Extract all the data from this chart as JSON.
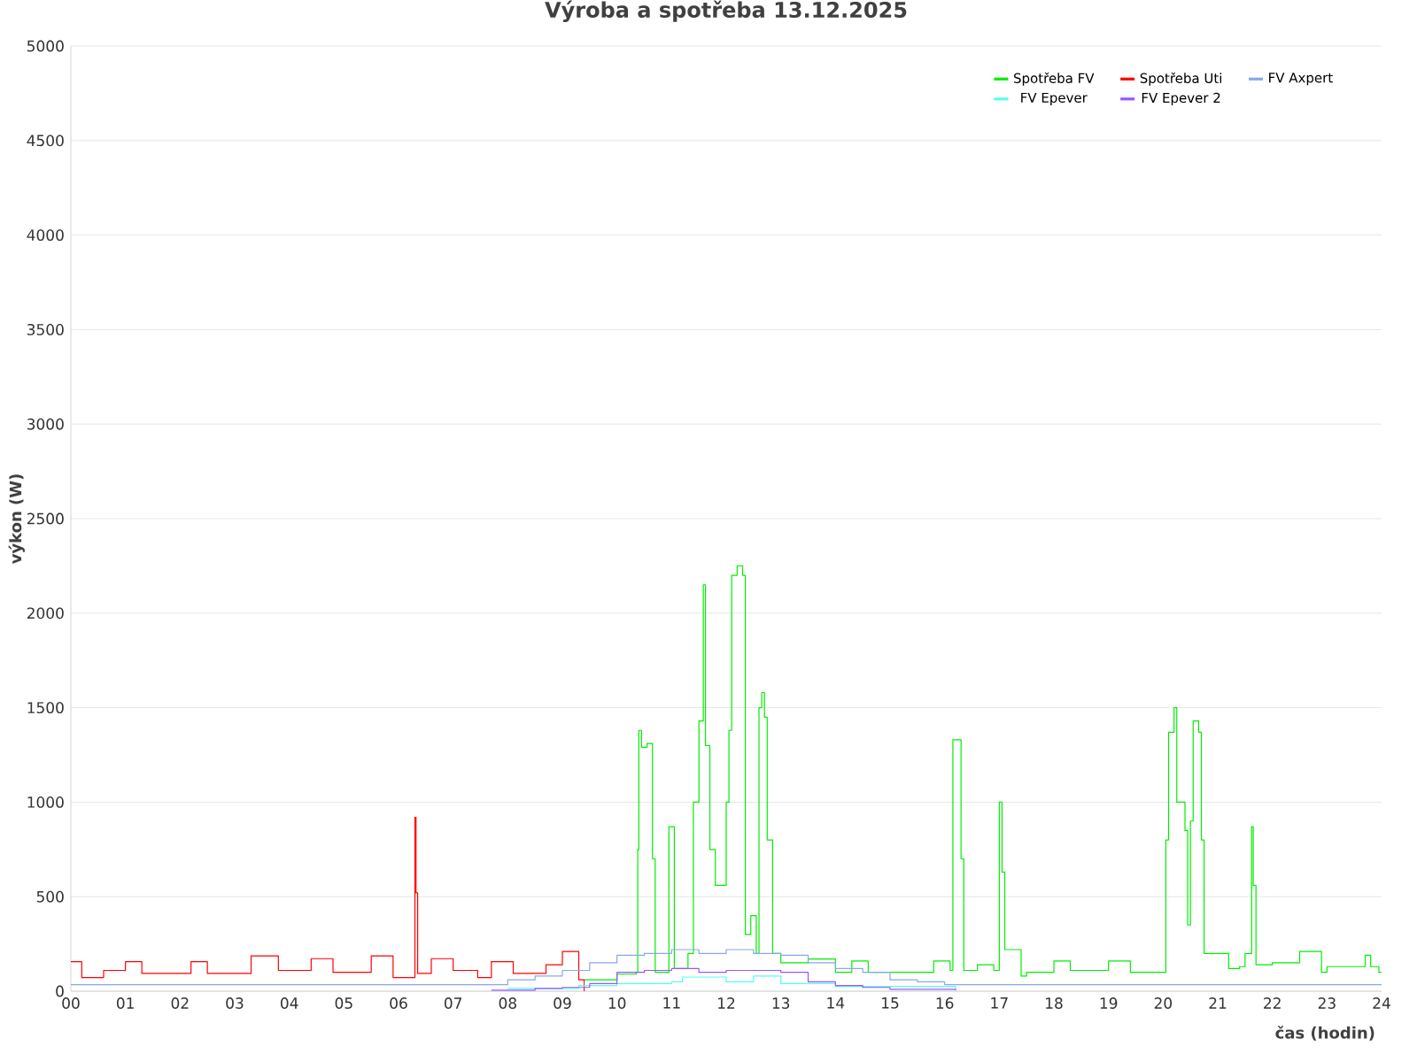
{
  "chart_data": {
    "type": "step",
    "title": "Výroba a spotřeba 13.12.2025",
    "xlabel": "čas (hodin)",
    "ylabel": "výkon (W)",
    "xlim": [
      0,
      24
    ],
    "ylim": [
      0,
      5000
    ],
    "xticks": [
      {
        "value": 0,
        "label": "00"
      },
      {
        "value": 1,
        "label": "01"
      },
      {
        "value": 2,
        "label": "02"
      },
      {
        "value": 3,
        "label": "03"
      },
      {
        "value": 4,
        "label": "04"
      },
      {
        "value": 5,
        "label": "05"
      },
      {
        "value": 6,
        "label": "06"
      },
      {
        "value": 7,
        "label": "07"
      },
      {
        "value": 8,
        "label": "08"
      },
      {
        "value": 9,
        "label": "09"
      },
      10,
      11,
      12,
      13,
      14,
      15,
      16,
      17,
      18,
      19,
      20,
      21,
      22,
      23,
      24
    ],
    "yticks": [
      0,
      500,
      1000,
      1500,
      2000,
      2500,
      3000,
      3500,
      4000,
      4500,
      5000
    ],
    "grid": "y",
    "legend": "top right",
    "marker": "none",
    "line_style": "solid",
    "series": [
      {
        "name": "Spotřeba FV",
        "color": "#00ee00",
        "x": [
          9.4,
          10.0,
          10.35,
          10.38,
          10.4,
          10.45,
          10.55,
          10.65,
          10.7,
          10.95,
          11.05,
          11.3,
          11.4,
          11.5,
          11.58,
          11.62,
          11.7,
          11.8,
          12.0,
          12.05,
          12.1,
          12.2,
          12.3,
          12.35,
          12.45,
          12.55,
          12.6,
          12.65,
          12.7,
          12.75,
          12.85,
          13.0,
          13.5,
          14.0,
          14.3,
          14.6,
          15.0,
          15.8,
          16.1,
          16.15,
          16.3,
          16.35,
          16.6,
          16.9,
          17.0,
          17.05,
          17.1,
          17.3,
          17.4,
          17.5,
          18.0,
          18.3,
          18.4,
          19.0,
          19.4,
          19.5,
          20.0,
          20.05,
          20.1,
          20.2,
          20.25,
          20.4,
          20.45,
          20.5,
          20.55,
          20.65,
          20.7,
          20.75,
          21.0,
          21.2,
          21.4,
          21.5,
          21.62,
          21.65,
          21.7,
          22.0,
          22.4,
          22.5,
          22.8,
          22.9,
          23.0,
          23.6,
          23.7,
          23.8,
          23.95,
          24.0
        ],
        "values": [
          60,
          90,
          100,
          750,
          1380,
          1290,
          1310,
          700,
          100,
          870,
          120,
          200,
          1000,
          1430,
          2150,
          1300,
          750,
          560,
          1000,
          1380,
          2200,
          2250,
          2200,
          300,
          400,
          200,
          1500,
          1580,
          1450,
          800,
          200,
          150,
          170,
          100,
          160,
          100,
          100,
          160,
          110,
          1330,
          700,
          110,
          140,
          110,
          1000,
          630,
          220,
          220,
          80,
          100,
          160,
          110,
          110,
          160,
          100,
          100,
          100,
          800,
          1370,
          1500,
          1000,
          850,
          350,
          900,
          1430,
          1370,
          800,
          200,
          200,
          120,
          130,
          200,
          870,
          560,
          140,
          150,
          150,
          210,
          210,
          100,
          130,
          130,
          190,
          130,
          100,
          100
        ]
      },
      {
        "name": "Spotřeba Uti",
        "color": "#ff0000",
        "x": [
          0,
          0.2,
          0.6,
          1.0,
          1.3,
          2.2,
          2.5,
          3.3,
          3.8,
          4.4,
          4.8,
          5.5,
          5.9,
          6.3,
          6.32,
          6.35,
          6.6,
          7.0,
          7.45,
          7.7,
          8.1,
          8.7,
          9.0,
          9.3,
          9.4
        ],
        "values": [
          156,
          72,
          110,
          156,
          94,
          156,
          94,
          187,
          110,
          172,
          100,
          187,
          72,
          920,
          520,
          94,
          172,
          110,
          72,
          156,
          94,
          140,
          210,
          60,
          0
        ]
      },
      {
        "name": "FV Axpert",
        "color": "#88a8e8",
        "x": [
          0,
          8.0,
          8.5,
          9.0,
          9.5,
          10.0,
          10.5,
          11.0,
          11.5,
          12.0,
          12.5,
          13.0,
          13.5,
          14.0,
          14.5,
          15.0,
          15.5,
          16.0,
          24.0
        ],
        "values": [
          35,
          60,
          80,
          110,
          150,
          190,
          200,
          220,
          200,
          220,
          200,
          190,
          150,
          120,
          100,
          60,
          50,
          35,
          35
        ]
      },
      {
        "name": "FV Epever",
        "color": "#55ffee",
        "x": [
          8.0,
          9.3,
          10.0,
          11.0,
          11.2,
          12.0,
          12.5,
          13.0,
          14.0,
          15.0,
          15.8,
          16.2
        ],
        "values": [
          15,
          30,
          40,
          50,
          75,
          50,
          80,
          40,
          25,
          25,
          25,
          5
        ]
      },
      {
        "name": "FV Epever 2",
        "color": "#9955ff",
        "x": [
          7.7,
          8.5,
          9.0,
          9.5,
          10.0,
          10.5,
          11.0,
          11.5,
          12.0,
          12.5,
          13.0,
          13.5,
          14.0,
          14.5,
          15.0,
          16.2
        ],
        "values": [
          5,
          15,
          20,
          40,
          100,
          110,
          120,
          100,
          110,
          110,
          100,
          50,
          30,
          20,
          10,
          5
        ]
      }
    ]
  }
}
